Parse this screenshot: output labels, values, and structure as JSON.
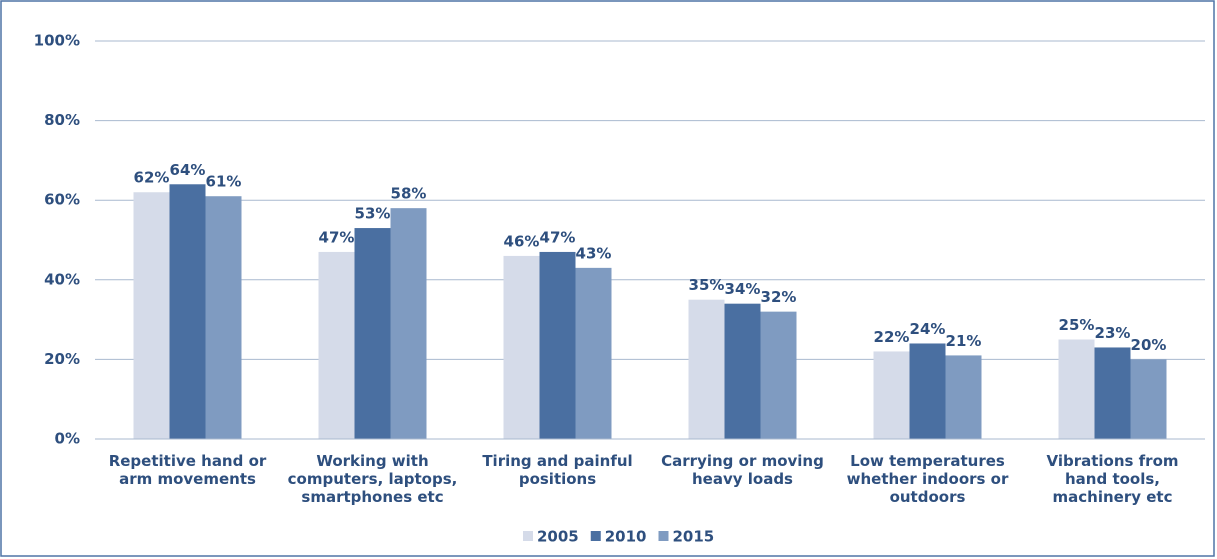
{
  "chart_data": {
    "type": "bar",
    "categories": [
      "Repetitive hand or arm movements",
      "Working with computers, laptops, smartphones etc",
      "Tiring and painful positions",
      "Carrying or moving heavy loads",
      "Low temperatures whether indoors or outdoors",
      "Vibrations from hand tools, machinery etc"
    ],
    "series": [
      {
        "name": "2005",
        "color": "#d5dbe9",
        "values": [
          62,
          47,
          46,
          35,
          22,
          25
        ],
        "value_labels": [
          "62%",
          "47%",
          "46%",
          "35%",
          "22%",
          "25%"
        ]
      },
      {
        "name": "2010",
        "color": "#4a6fa1",
        "values": [
          64,
          53,
          47,
          34,
          24,
          23
        ],
        "value_labels": [
          "64%",
          "53%",
          "47%",
          "34%",
          "24%",
          "23%"
        ]
      },
      {
        "name": "2015",
        "color": "#7f9bc1",
        "values": [
          61,
          58,
          43,
          32,
          21,
          20
        ],
        "value_labels": [
          "61%",
          "58%",
          "43%",
          "32%",
          "21%",
          "20%"
        ]
      }
    ],
    "ylim": [
      0,
      100
    ],
    "yticks": [
      {
        "value": 0,
        "label": "0%"
      },
      {
        "value": 20,
        "label": "20%"
      },
      {
        "value": 40,
        "label": "40%"
      },
      {
        "value": 60,
        "label": "60%"
      },
      {
        "value": 80,
        "label": "80%"
      },
      {
        "value": 100,
        "label": "100%"
      }
    ],
    "grid": true,
    "legend": "bottom"
  }
}
